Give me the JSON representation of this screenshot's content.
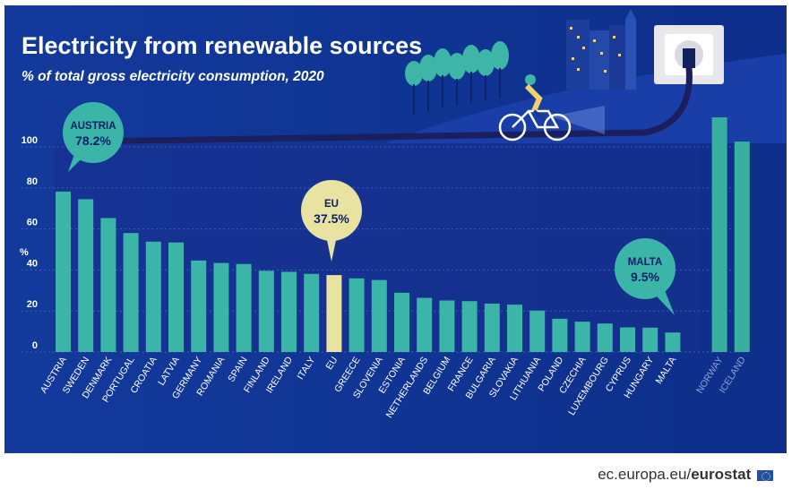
{
  "header": {
    "title": "Electricity from renewable sources",
    "subtitle": "% of total gross electricity consumption, 2020"
  },
  "footer": {
    "source_prefix": "ec.europa.eu/",
    "source_brand": "eurostat"
  },
  "colors": {
    "background": "#0e2f8a",
    "panel_dark": "#14287a",
    "bar_main": "#3ab5a8",
    "bar_eu": "#e9e3a1",
    "bar_non_eu": "#38b09e",
    "label_non_eu": "#8fa3d8",
    "title": "#ffffff",
    "footer_text": "#333333"
  },
  "chart_data": {
    "type": "bar",
    "ylabel": "%",
    "ylim": [
      0,
      120
    ],
    "yticks": [
      0,
      20,
      40,
      60,
      80,
      100
    ],
    "categories": [
      "AUSTRIA",
      "SWEDEN",
      "DENMARK",
      "PORTUGAL",
      "CROATIA",
      "LATVIA",
      "GERMANY",
      "ROMANIA",
      "SPAIN",
      "FINLAND",
      "IRELAND",
      "ITALY",
      "EU",
      "GREECE",
      "SLOVENIA",
      "ESTONIA",
      "NETHERLANDS",
      "BELGIUM",
      "FRANCE",
      "BULGARIA",
      "SLOVAKIA",
      "LITHUANIA",
      "POLAND",
      "CZECHIA",
      "LUXEMBOURG",
      "CYPRUS",
      "HUNGARY",
      "MALTA",
      "NORWAY",
      "ICELAND"
    ],
    "values": [
      78.2,
      74.5,
      65.3,
      58.0,
      53.8,
      53.4,
      44.6,
      43.4,
      42.9,
      39.6,
      39.1,
      38.1,
      37.5,
      35.9,
      35.1,
      28.9,
      26.4,
      25.1,
      24.8,
      23.6,
      23.1,
      20.2,
      16.2,
      14.8,
      13.9,
      12.0,
      11.9,
      9.5,
      114.4,
      102.6
    ],
    "highlight": "EU",
    "non_eu": [
      "NORWAY",
      "ICELAND"
    ],
    "callouts": [
      {
        "country": "AUSTRIA",
        "line1": "AUSTRIA",
        "line2": "78.2%"
      },
      {
        "country": "EU",
        "line1": "EU",
        "line2": "37.5%"
      },
      {
        "country": "MALTA",
        "line1": "MALTA",
        "line2": "9.5%"
      }
    ]
  }
}
